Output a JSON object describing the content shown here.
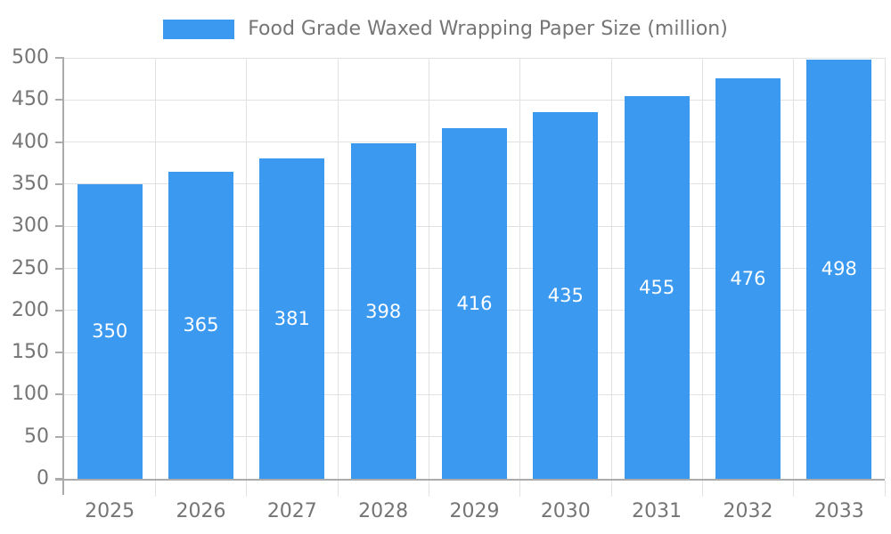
{
  "chart_data": {
    "type": "bar",
    "title": "Food Grade Waxed Wrapping Paper Size (million)",
    "categories": [
      "2025",
      "2026",
      "2027",
      "2028",
      "2029",
      "2030",
      "2031",
      "2032",
      "2033"
    ],
    "values": [
      350,
      365,
      381,
      398,
      416,
      435,
      455,
      476,
      498
    ],
    "xlabel": "",
    "ylabel": "",
    "ylim": [
      0,
      500
    ],
    "ytick_step": 50,
    "grid": true,
    "legend_position": "top-center",
    "value_labels": "inside-center",
    "colors": {
      "bar": "#3B99F0",
      "bar_label": "#FFFFFF",
      "axis_line": "#ABABAB",
      "grid_line": "#E2E2E2",
      "tick_label": "#757575",
      "legend_text": "#757575",
      "background": "#FFFFFF"
    }
  }
}
